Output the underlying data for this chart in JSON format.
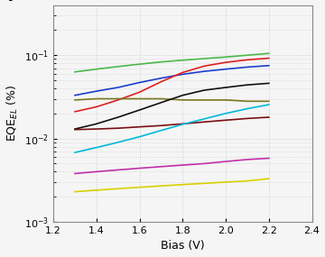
{
  "title_label": "f",
  "xlabel": "Bias (V)",
  "ylabel": "EQE$_{EL}$ (%)",
  "xlim": [
    1.2,
    2.4
  ],
  "ylim": [
    0.001,
    0.4
  ],
  "x_ticks": [
    1.2,
    1.4,
    1.6,
    1.8,
    2.0,
    2.2,
    2.4
  ],
  "lines": [
    {
      "color": "#4ab84a",
      "x": [
        1.3,
        1.4,
        1.5,
        1.6,
        1.7,
        1.8,
        1.9,
        2.0,
        2.1,
        2.2
      ],
      "y": [
        0.063,
        0.068,
        0.073,
        0.078,
        0.083,
        0.087,
        0.091,
        0.095,
        0.1,
        0.105
      ]
    },
    {
      "color": "#1a3ecc",
      "x": [
        1.3,
        1.4,
        1.5,
        1.6,
        1.7,
        1.8,
        1.9,
        2.0,
        2.1,
        2.2
      ],
      "y": [
        0.033,
        0.037,
        0.041,
        0.047,
        0.053,
        0.059,
        0.064,
        0.068,
        0.072,
        0.075
      ]
    },
    {
      "color": "#dd2020",
      "x": [
        1.3,
        1.4,
        1.5,
        1.6,
        1.7,
        1.8,
        1.9,
        2.0,
        2.1,
        2.2
      ],
      "y": [
        0.021,
        0.024,
        0.029,
        0.036,
        0.048,
        0.062,
        0.074,
        0.082,
        0.088,
        0.092
      ]
    },
    {
      "color": "#787820",
      "x": [
        1.3,
        1.4,
        1.5,
        1.6,
        1.7,
        1.8,
        1.9,
        2.0,
        2.1,
        2.2
      ],
      "y": [
        0.029,
        0.03,
        0.03,
        0.03,
        0.03,
        0.029,
        0.029,
        0.029,
        0.028,
        0.028
      ]
    },
    {
      "color": "#111111",
      "x": [
        1.3,
        1.4,
        1.5,
        1.6,
        1.7,
        1.8,
        1.9,
        2.0,
        2.1,
        2.2
      ],
      "y": [
        0.013,
        0.015,
        0.018,
        0.022,
        0.027,
        0.033,
        0.038,
        0.041,
        0.044,
        0.046
      ]
    },
    {
      "color": "#7a1010",
      "x": [
        1.3,
        1.4,
        1.5,
        1.6,
        1.7,
        1.8,
        1.9,
        2.0,
        2.1,
        2.2
      ],
      "y": [
        0.0128,
        0.013,
        0.0133,
        0.0138,
        0.0143,
        0.015,
        0.0158,
        0.0166,
        0.0174,
        0.018
      ]
    },
    {
      "color": "#00b8d8",
      "x": [
        1.3,
        1.4,
        1.5,
        1.6,
        1.7,
        1.8,
        1.9,
        2.0,
        2.1,
        2.2
      ],
      "y": [
        0.0068,
        0.0078,
        0.009,
        0.0105,
        0.0125,
        0.0148,
        0.0172,
        0.02,
        0.0228,
        0.0255
      ]
    },
    {
      "color": "#c030a8",
      "x": [
        1.3,
        1.4,
        1.5,
        1.6,
        1.7,
        1.8,
        1.9,
        2.0,
        2.1,
        2.2
      ],
      "y": [
        0.0038,
        0.004,
        0.0042,
        0.0044,
        0.0046,
        0.0048,
        0.005,
        0.0053,
        0.0056,
        0.0058
      ]
    },
    {
      "color": "#d8d000",
      "x": [
        1.3,
        1.4,
        1.5,
        1.6,
        1.7,
        1.8,
        1.9,
        2.0,
        2.1,
        2.2
      ],
      "y": [
        0.0023,
        0.0024,
        0.0025,
        0.0026,
        0.0027,
        0.0028,
        0.0029,
        0.003,
        0.0031,
        0.0033
      ]
    }
  ],
  "background_color": "#f5f5f5",
  "grid_color": "#cccccc",
  "linewidth": 1.2
}
